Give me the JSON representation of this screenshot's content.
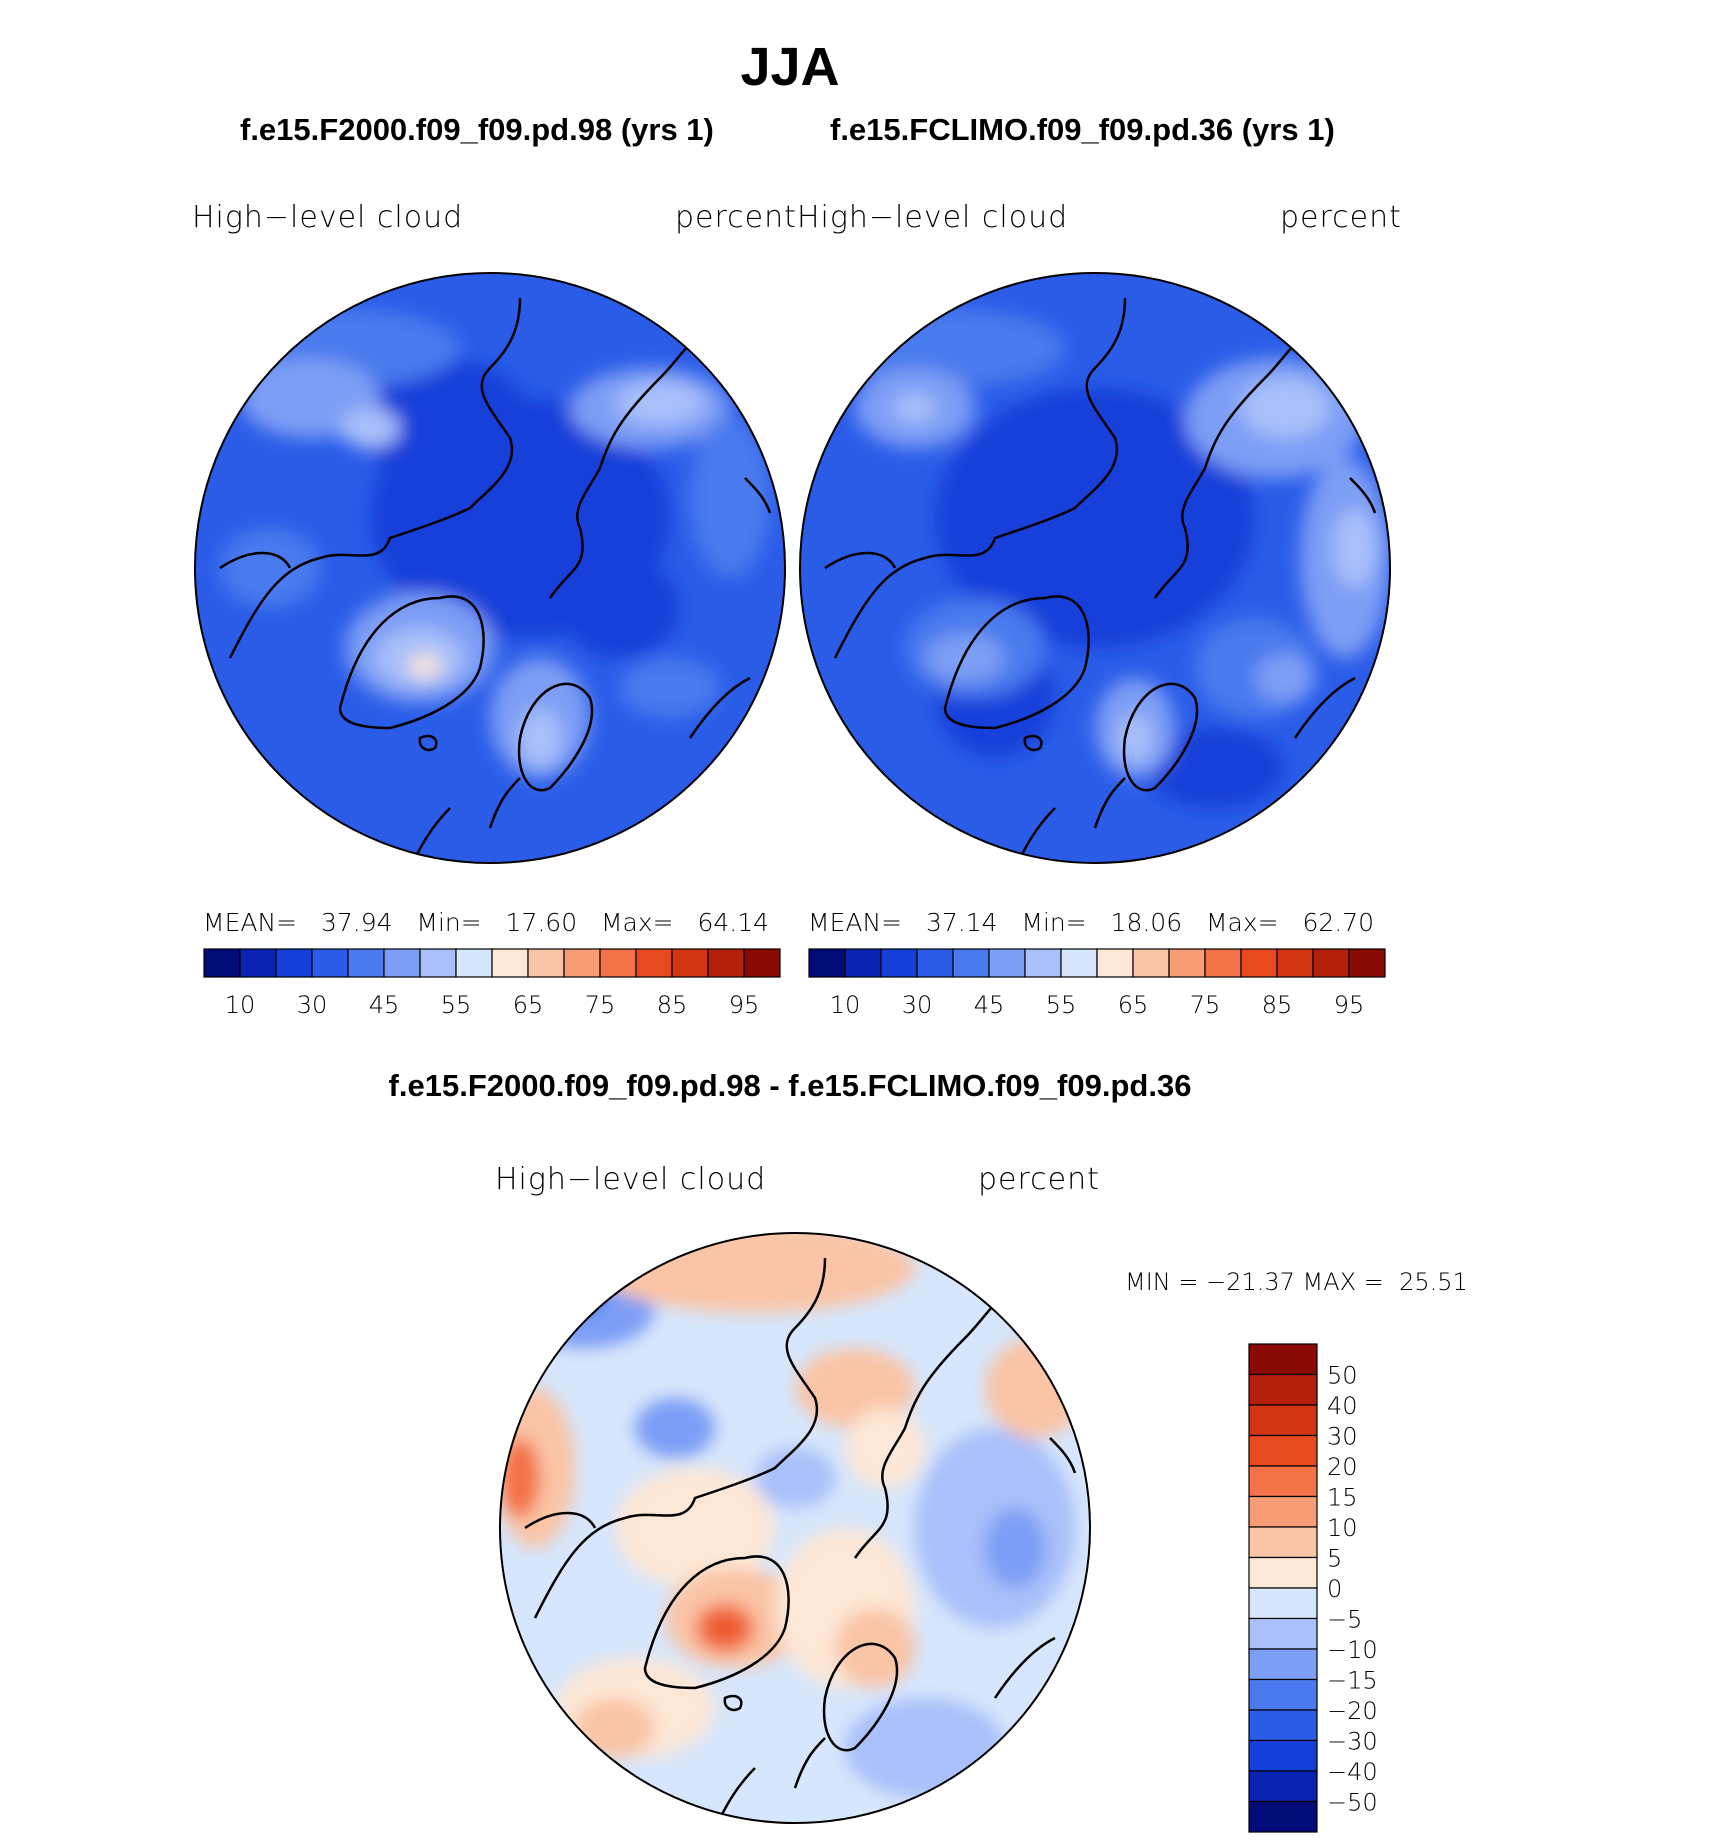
{
  "season_title": "JJA",
  "colors": {
    "abs_scale": [
      "#030b78",
      "#0a23b0",
      "#1440d9",
      "#2a5ce8",
      "#4a7aee",
      "#7d9ef5",
      "#a9c0fa",
      "#d6e6fc",
      "#fde7d6",
      "#fac4a6",
      "#f79c74",
      "#f37247",
      "#e84a20",
      "#d33412",
      "#b3210c",
      "#8a0a05"
    ],
    "diff_scale": [
      "#030b78",
      "#0a23b0",
      "#1440d9",
      "#2a5ce8",
      "#4a7aee",
      "#7d9ef5",
      "#a9c0fa",
      "#d6e6fc",
      "#fde7d6",
      "#fac4a6",
      "#f79c74",
      "#f37247",
      "#e84a20",
      "#d33412",
      "#b3210c",
      "#8a0a05"
    ]
  },
  "panels": [
    {
      "case_title": "f.e15.F2000.f09_f09.pd.98 (yrs 1)",
      "field_label": "High−level  cloud",
      "units_label": "percent",
      "mean_label": "MEAN=",
      "mean_value": "37.94",
      "min_label": "Min=",
      "min_value": "17.60",
      "max_label": "Max=",
      "max_value": "64.14"
    },
    {
      "case_title": "f.e15.FCLIMO.f09_f09.pd.36 (yrs 1)",
      "field_label": "High−level  cloud",
      "units_label": "percent",
      "mean_label": "MEAN=",
      "mean_value": "37.14",
      "min_label": "Min=",
      "min_value": "18.06",
      "max_label": "Max=",
      "max_value": "62.70"
    }
  ],
  "abs_colorbar_ticks": [
    "10",
    "30",
    "45",
    "55",
    "65",
    "75",
    "85",
    "95"
  ],
  "difference": {
    "title": "f.e15.F2000.f09_f09.pd.98 - f.e15.FCLIMO.f09_f09.pd.36",
    "field_label": "High−level  cloud",
    "units_label": "percent",
    "min_max_text": "MIN = −21.37 MAX =  25.51",
    "colorbar_labels": [
      "50",
      "40",
      "30",
      "20",
      "15",
      "10",
      "5",
      "0",
      "−5",
      "−10",
      "−15",
      "−20",
      "−30",
      "−40",
      "−50"
    ]
  }
}
